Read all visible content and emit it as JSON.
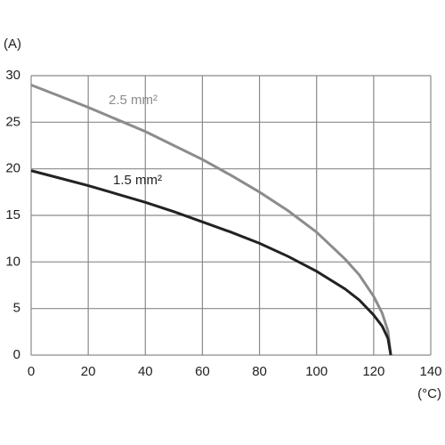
{
  "chart_data": {
    "type": "line",
    "y_label": "(A)",
    "x_label": "(°C)",
    "x": [
      0,
      10,
      20,
      30,
      40,
      50,
      60,
      70,
      80,
      90,
      100,
      110,
      115,
      120,
      123,
      125,
      126
    ],
    "series": [
      {
        "name": "2.5 mm²",
        "color": "#8c8c8c",
        "values": [
          29,
          27.8,
          26.6,
          25.3,
          24.0,
          22.5,
          21.0,
          19.3,
          17.5,
          15.5,
          13.2,
          10.3,
          8.6,
          6.3,
          4.5,
          2.6,
          0
        ]
      },
      {
        "name": "1.5 mm²",
        "color": "#222222",
        "values": [
          19.8,
          19.0,
          18.2,
          17.3,
          16.4,
          15.4,
          14.3,
          13.2,
          12.0,
          10.6,
          9.0,
          7.1,
          5.9,
          4.3,
          3.1,
          1.8,
          0
        ]
      }
    ],
    "xlim": [
      0,
      140
    ],
    "xticks": [
      0,
      20,
      40,
      60,
      80,
      100,
      120,
      140
    ],
    "ylim": [
      0,
      30
    ],
    "yticks": [
      0,
      5,
      10,
      15,
      20,
      25,
      30
    ],
    "grid": true
  }
}
